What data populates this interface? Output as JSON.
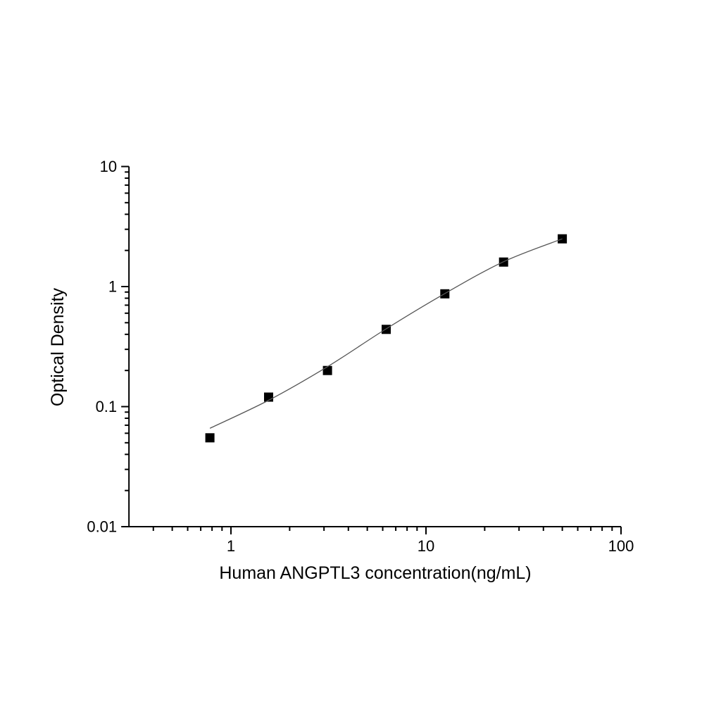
{
  "chart_data": {
    "type": "scatter",
    "title": "",
    "xlabel": "Human ANGPTL3 concentration(ng/mL)",
    "ylabel": "Optical Density",
    "x_scale": "log",
    "y_scale": "log",
    "xlim": [
      0.3,
      100
    ],
    "ylim": [
      0.01,
      10
    ],
    "x_ticks": [
      1,
      10,
      100
    ],
    "x_tick_labels": [
      "1",
      "10",
      "100"
    ],
    "y_ticks": [
      10,
      1,
      0.1,
      0.01
    ],
    "y_tick_labels": [
      "10",
      "1",
      "0.1",
      "0.01"
    ],
    "x_minor_ticks": [
      0.4,
      0.5,
      0.6,
      0.7,
      0.8,
      0.9,
      2,
      3,
      4,
      5,
      6,
      7,
      8,
      9,
      20,
      30,
      40,
      50,
      60,
      70,
      80,
      90
    ],
    "y_minor_ticks": [
      0.02,
      0.03,
      0.04,
      0.05,
      0.06,
      0.07,
      0.08,
      0.09,
      0.2,
      0.3,
      0.4,
      0.5,
      0.6,
      0.7,
      0.8,
      0.9,
      2,
      3,
      4,
      5,
      6,
      7,
      8,
      9
    ],
    "grid": false,
    "legend": null,
    "series": [
      {
        "name": "standard-points",
        "kind": "scatter",
        "marker": "square",
        "marker_size": 13,
        "color": "#000000",
        "x": [
          0.78,
          1.56,
          3.125,
          6.25,
          12.5,
          25,
          50
        ],
        "y": [
          0.055,
          0.12,
          0.2,
          0.44,
          0.87,
          1.6,
          2.5
        ]
      },
      {
        "name": "fit-curve",
        "kind": "line",
        "color": "#555555",
        "width": 1.3,
        "x": [
          0.78,
          1.56,
          3.125,
          6.25,
          12.5,
          25,
          50
        ],
        "y": [
          0.066,
          0.113,
          0.215,
          0.445,
          0.875,
          1.61,
          2.5
        ]
      }
    ]
  },
  "colors": {
    "background": "#ffffff",
    "axis": "#000000",
    "marker": "#000000",
    "curve": "#555555"
  }
}
